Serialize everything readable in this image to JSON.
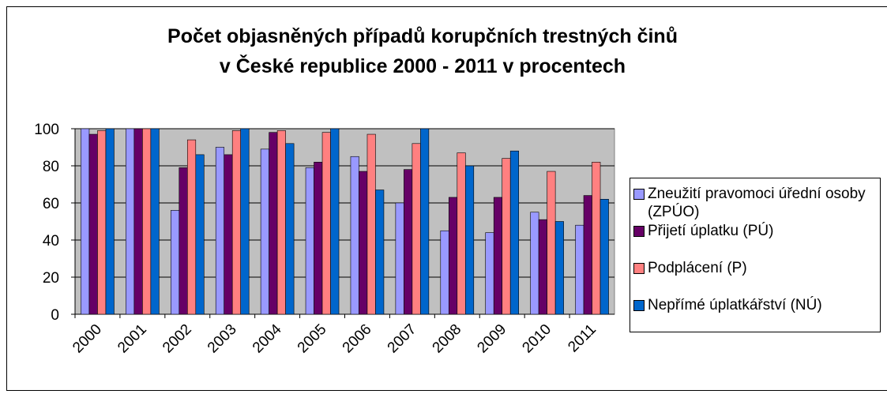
{
  "chart_data": {
    "type": "bar",
    "title": "Počet objasněných případů korupčních trestných činů v České republice 2000 - 2011 v procentech",
    "categories": [
      "2000",
      "2001",
      "2002",
      "2003",
      "2004",
      "2005",
      "2006",
      "2007",
      "2008",
      "2009",
      "2010",
      "2011"
    ],
    "series": [
      {
        "name": "Zneužití pravomoci úřední osoby (ZPÚO)",
        "color": "#9999ff",
        "values": [
          100,
          100,
          56,
          90,
          89,
          79,
          85,
          60,
          45,
          44,
          55,
          48
        ]
      },
      {
        "name": "Přijetí úplatku (PÚ)",
        "color": "#660066",
        "values": [
          97,
          100,
          79,
          86,
          98,
          82,
          77,
          78,
          63,
          63,
          51,
          64
        ]
      },
      {
        "name": "Podplácení (P)",
        "color": "#ff8080",
        "values": [
          99,
          100,
          94,
          99,
          99,
          98,
          97,
          92,
          87,
          84,
          77,
          82
        ]
      },
      {
        "name": "Nepřímé úplatkářství (NÚ)",
        "color": "#0066cc",
        "values": [
          100,
          100,
          86,
          100,
          92,
          100,
          67,
          100,
          80,
          88,
          50,
          62
        ]
      }
    ],
    "ylim": [
      0,
      100
    ],
    "yticks": [
      0,
      20,
      40,
      60,
      80,
      100
    ],
    "grid": true,
    "legend": "right"
  }
}
